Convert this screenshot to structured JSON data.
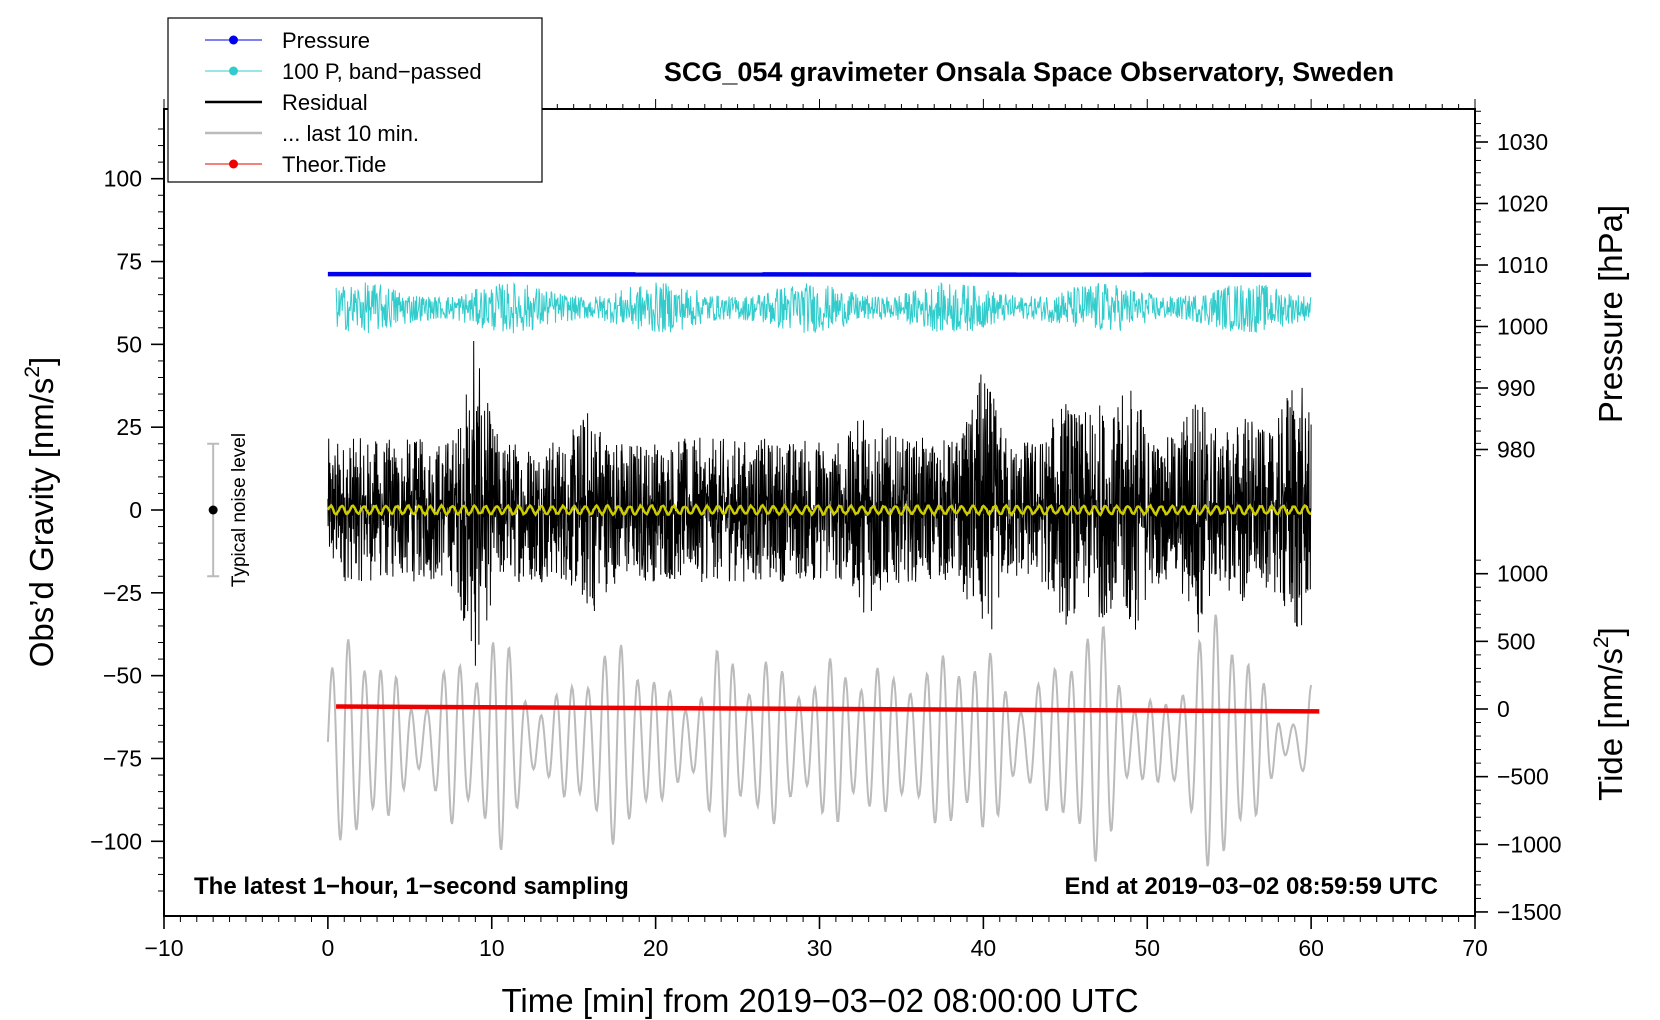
{
  "chart_data": {
    "type": "line",
    "title": "SCG_054 gravimeter Onsala Space Observatory, Sweden",
    "xlabel": "Time [min] from 2019−03−02 08:00:00 UTC",
    "ylabel": "Obs’d Gravity [nm/s",
    "ylabel_sup": "2",
    "ylabel_tail": "]",
    "xlim": [
      -10,
      70
    ],
    "ylim": [
      -120,
      120
    ],
    "x_ticks": [
      -10,
      0,
      10,
      20,
      30,
      40,
      50,
      60,
      70
    ],
    "x_tick_labels": [
      "−10",
      "0",
      "10",
      "20",
      "30",
      "40",
      "50",
      "60",
      "70"
    ],
    "y_ticks": [
      -100,
      -75,
      -50,
      -25,
      0,
      25,
      50,
      75,
      100
    ],
    "y_tick_labels": [
      "−100",
      "−75",
      "−50",
      "−25",
      "0",
      "25",
      "50",
      "75",
      "100"
    ],
    "right_axis_pressure": {
      "label": "Pressure [hPa]",
      "ticks": [
        980,
        990,
        1000,
        1010,
        1020,
        1030
      ],
      "tick_labels": [
        "980",
        "990",
        "1000",
        "1010",
        "1020",
        "1030"
      ]
    },
    "right_axis_tide": {
      "label": "Tide [nm/s",
      "label_sup": "2",
      "label_tail": "]",
      "ticks": [
        -1500,
        -1000,
        -500,
        0,
        500,
        1000
      ],
      "tick_labels": [
        "−1500",
        "−1000",
        "−500",
        "0",
        "500",
        "1000"
      ]
    },
    "series": [
      {
        "name": "Pressure",
        "color": "#0000ee",
        "x_start": 0,
        "x_end": 60,
        "gravity_axis_start": 71.2,
        "gravity_axis_end": 71.0,
        "style": "thick line"
      },
      {
        "name": "100 P, band−passed",
        "color": "#33cccc",
        "x_start": 0.5,
        "x_end": 60,
        "mean": 61,
        "amplitude": 7,
        "style": "noisy line"
      },
      {
        "name": "Residual",
        "color": "#000000",
        "x_start": 0,
        "x_end": 60,
        "mean": 0,
        "amplitude": 28,
        "peak_max": 51,
        "peak_min": -47,
        "style": "noisy line"
      },
      {
        "name": "... last 10 min.",
        "color": "#bbbbbb",
        "x_start": 0,
        "x_end": 60,
        "mean": -70,
        "amplitude": 25,
        "style": "oscillating line"
      },
      {
        "name": "Theor.Tide",
        "color": "#ee0000",
        "x_start": 0.5,
        "x_end": 60.5,
        "gravity_axis_start": -59.3,
        "gravity_axis_end": -60.8,
        "style": "thick line"
      },
      {
        "name": "Residual (smoothed)",
        "color": "#cccc00",
        "x_start": 0,
        "x_end": 60,
        "mean": 0,
        "amplitude": 1.2,
        "style": "smooth line",
        "in_legend": false
      }
    ],
    "legend": [
      {
        "label": "Pressure",
        "color": "#0000ee",
        "marker": true,
        "width": 1
      },
      {
        "label": "100 P, band−passed",
        "color": "#33cccc",
        "marker": true,
        "width": 1
      },
      {
        "label": "Residual",
        "color": "#000000",
        "marker": false,
        "width": 2.5
      },
      {
        "label": "... last 10 min.",
        "color": "#bbbbbb",
        "marker": false,
        "width": 2.5
      },
      {
        "label": "Theor.Tide",
        "color": "#ee0000",
        "marker": true,
        "width": 1
      }
    ],
    "legend_position": "top-left",
    "noise_indicator": {
      "label": "Typical noise level",
      "x": -7,
      "center": 0,
      "half_range": 20
    },
    "annotations": {
      "bottom_left": "The latest 1−hour, 1−second sampling",
      "bottom_right": "End at 2019−03−02 08:59:59 UTC"
    },
    "grid": false
  }
}
